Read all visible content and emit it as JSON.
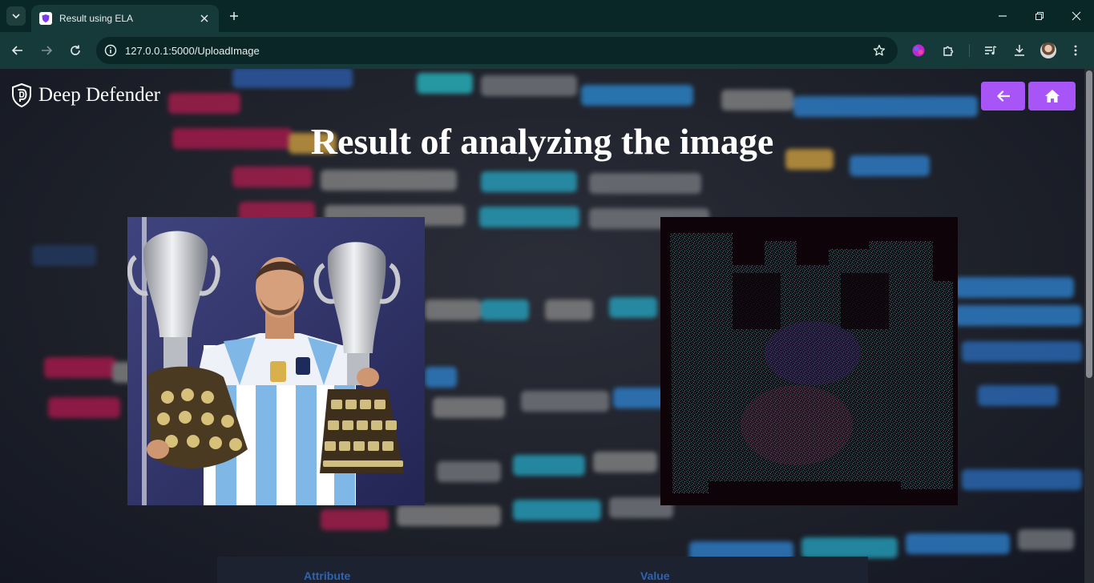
{
  "browser": {
    "tab_title": "Result using ELA",
    "url": "127.0.0.1:5000/UploadImage"
  },
  "header": {
    "brand_name": "Deep Defender",
    "back_button_icon": "arrow-left-icon",
    "home_button_icon": "home-icon"
  },
  "main": {
    "title": "Result of analyzing the image",
    "original_image": "photo of a footballer in a light blue and white striped shirt holding two silver trophies",
    "ela_image": "error level analysis output, dark noise map"
  },
  "results_table": {
    "headers": [
      "Attribute",
      "Value"
    ]
  },
  "colors": {
    "accent": "#a855f7",
    "chrome": "#163a3a",
    "tabstrip": "#0a2727",
    "table_header_text": "#2f63b2"
  }
}
